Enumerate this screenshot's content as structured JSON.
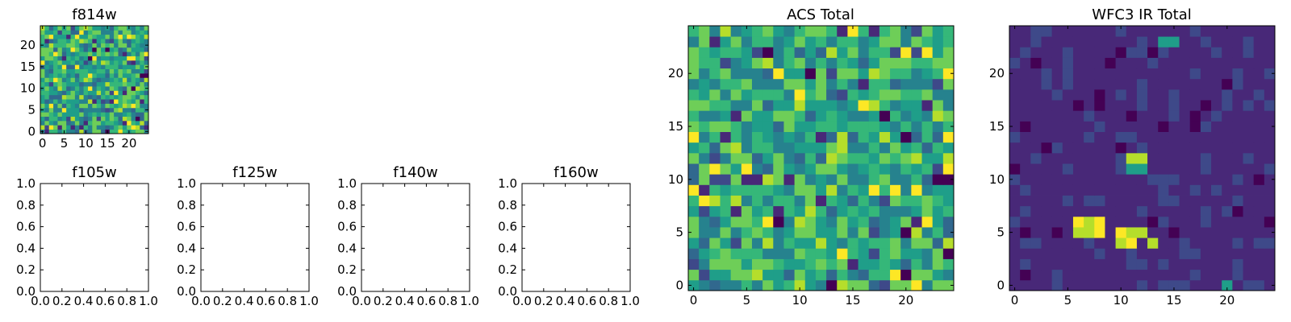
{
  "figure": {
    "panels": [
      {
        "id": "f814w",
        "title": "f814w",
        "type": "heatmap",
        "rows": 25,
        "cols": 25,
        "xticks": [
          "0",
          "5",
          "10",
          "15",
          "20"
        ],
        "yticks": [
          "0",
          "5",
          "10",
          "15",
          "20"
        ],
        "colormap": "viridis",
        "pattern": "noise"
      },
      {
        "id": "f105w",
        "title": "f105w",
        "type": "empty",
        "xticks": [
          "0.0",
          "0.2",
          "0.4",
          "0.6",
          "0.8",
          "1.0"
        ],
        "yticks": [
          "0.0",
          "0.2",
          "0.4",
          "0.6",
          "0.8",
          "1.0"
        ],
        "xlim": [
          0,
          1
        ],
        "ylim": [
          0,
          1
        ]
      },
      {
        "id": "f125w",
        "title": "f125w",
        "type": "empty",
        "xticks": [
          "0.0",
          "0.2",
          "0.4",
          "0.6",
          "0.8",
          "1.0"
        ],
        "yticks": [
          "0.0",
          "0.2",
          "0.4",
          "0.6",
          "0.8",
          "1.0"
        ],
        "xlim": [
          0,
          1
        ],
        "ylim": [
          0,
          1
        ]
      },
      {
        "id": "f140w",
        "title": "f140w",
        "type": "empty",
        "xticks": [
          "0.0",
          "0.2",
          "0.4",
          "0.6",
          "0.8",
          "1.0"
        ],
        "yticks": [
          "0.0",
          "0.2",
          "0.4",
          "0.6",
          "0.8",
          "1.0"
        ],
        "xlim": [
          0,
          1
        ],
        "ylim": [
          0,
          1
        ]
      },
      {
        "id": "f160w",
        "title": "f160w",
        "type": "empty",
        "xticks": [
          "0.0",
          "0.2",
          "0.4",
          "0.6",
          "0.8",
          "1.0"
        ],
        "yticks": [
          "0.0",
          "0.2",
          "0.4",
          "0.6",
          "0.8",
          "1.0"
        ],
        "xlim": [
          0,
          1
        ],
        "ylim": [
          0,
          1
        ]
      },
      {
        "id": "acs-total",
        "title": "ACS Total",
        "type": "heatmap",
        "rows": 25,
        "cols": 25,
        "xticks": [
          "0",
          "5",
          "10",
          "15",
          "20"
        ],
        "yticks": [
          "0",
          "5",
          "10",
          "15",
          "20"
        ],
        "colormap": "viridis",
        "pattern": "noise"
      },
      {
        "id": "wfc3-ir-total",
        "title": "WFC3 IR Total",
        "type": "heatmap",
        "rows": 25,
        "cols": 25,
        "xticks": [
          "0",
          "5",
          "10",
          "15",
          "20"
        ],
        "yticks": [
          "0",
          "5",
          "10",
          "15",
          "20"
        ],
        "colormap": "viridis",
        "pattern": "sparse"
      }
    ]
  },
  "chart_data": [
    {
      "type": "heatmap",
      "title": "f814w",
      "shape": [
        25,
        25
      ],
      "xlim": [
        -0.5,
        24.5
      ],
      "ylim": [
        -0.5,
        24.5
      ],
      "xticks": [
        0,
        5,
        10,
        15,
        20
      ],
      "yticks": [
        0,
        5,
        10,
        15,
        20
      ],
      "colormap": "viridis",
      "grid": false
    },
    {
      "type": "scatter",
      "title": "f105w",
      "xlim": [
        0,
        1
      ],
      "ylim": [
        0,
        1
      ],
      "grid": false
    },
    {
      "type": "scatter",
      "title": "f125w",
      "xlim": [
        0,
        1
      ],
      "ylim": [
        0,
        1
      ],
      "grid": false
    },
    {
      "type": "scatter",
      "title": "f140w",
      "xlim": [
        0,
        1
      ],
      "ylim": [
        0,
        1
      ],
      "grid": false
    },
    {
      "type": "scatter",
      "title": "f160w",
      "xlim": [
        0,
        1
      ],
      "ylim": [
        0,
        1
      ],
      "grid": false
    },
    {
      "type": "heatmap",
      "title": "ACS Total",
      "shape": [
        25,
        25
      ],
      "xlim": [
        -0.5,
        24.5
      ],
      "ylim": [
        -0.5,
        24.5
      ],
      "xticks": [
        0,
        5,
        10,
        15,
        20
      ],
      "yticks": [
        0,
        5,
        10,
        15,
        20
      ],
      "colormap": "viridis",
      "grid": false
    },
    {
      "type": "heatmap",
      "title": "WFC3 IR Total",
      "shape": [
        25,
        25
      ],
      "xlim": [
        -0.5,
        24.5
      ],
      "ylim": [
        -0.5,
        24.5
      ],
      "xticks": [
        0,
        5,
        10,
        15,
        20
      ],
      "yticks": [
        0,
        5,
        10,
        15,
        20
      ],
      "colormap": "viridis",
      "grid": false,
      "features": [
        {
          "x": 11,
          "y": 12,
          "level": "high"
        },
        {
          "x": 12,
          "y": 12,
          "level": "high"
        },
        {
          "x": 11,
          "y": 11,
          "level": "mid"
        },
        {
          "x": 12,
          "y": 11,
          "level": "mid"
        },
        {
          "x": 14,
          "y": 23,
          "level": "mid"
        },
        {
          "x": 15,
          "y": 23,
          "level": "mid"
        },
        {
          "x": 6,
          "y": 6,
          "level": "high"
        },
        {
          "x": 7,
          "y": 6,
          "level": "high"
        },
        {
          "x": 8,
          "y": 6,
          "level": "high"
        },
        {
          "x": 6,
          "y": 5,
          "level": "high"
        },
        {
          "x": 7,
          "y": 5,
          "level": "high"
        },
        {
          "x": 8,
          "y": 5,
          "level": "high"
        },
        {
          "x": 10,
          "y": 5,
          "level": "high"
        },
        {
          "x": 11,
          "y": 5,
          "level": "high"
        },
        {
          "x": 12,
          "y": 5,
          "level": "high"
        },
        {
          "x": 10,
          "y": 4,
          "level": "high"
        },
        {
          "x": 11,
          "y": 4,
          "level": "high"
        },
        {
          "x": 13,
          "y": 4,
          "level": "high"
        },
        {
          "x": 20,
          "y": 0,
          "level": "mid"
        }
      ]
    }
  ]
}
